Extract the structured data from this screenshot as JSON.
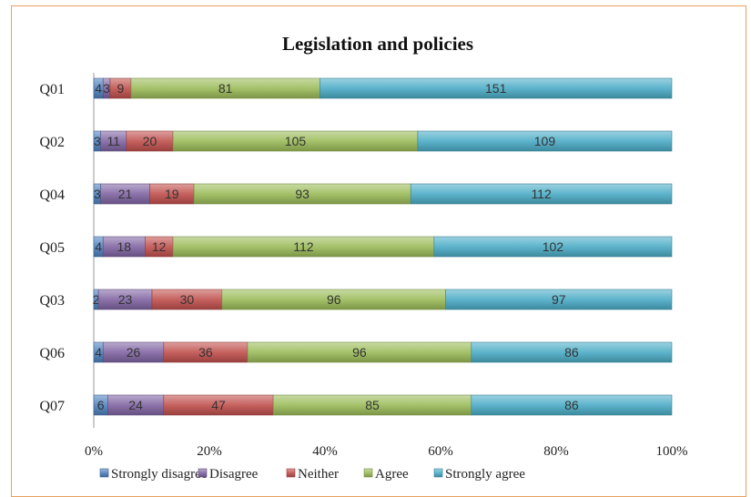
{
  "chart_data": {
    "type": "bar",
    "orientation": "horizontal",
    "stacked": "percent",
    "title": "Legislation and policies",
    "categories": [
      "Q01",
      "Q02",
      "Q04",
      "Q05",
      "Q03",
      "Q06",
      "Q07"
    ],
    "series": [
      {
        "name": "Strongly disagree",
        "color": "#4f81bd",
        "values": [
          4,
          3,
          3,
          4,
          2,
          4,
          6
        ]
      },
      {
        "name": "Disagree",
        "color": "#8064a2",
        "values": [
          3,
          11,
          21,
          18,
          23,
          26,
          24
        ]
      },
      {
        "name": "Neither",
        "color": "#c0504d",
        "values": [
          9,
          20,
          19,
          12,
          30,
          36,
          47
        ]
      },
      {
        "name": "Agree",
        "color": "#9bbb59",
        "values": [
          81,
          105,
          93,
          112,
          96,
          96,
          85
        ]
      },
      {
        "name": "Strongly agree",
        "color": "#4bacc6",
        "values": [
          151,
          109,
          112,
          102,
          97,
          86,
          86
        ]
      }
    ],
    "xticks": [
      "0%",
      "20%",
      "40%",
      "60%",
      "80%",
      "100%"
    ],
    "xlim": [
      0,
      100
    ],
    "grid": false,
    "legend_position": "bottom"
  }
}
